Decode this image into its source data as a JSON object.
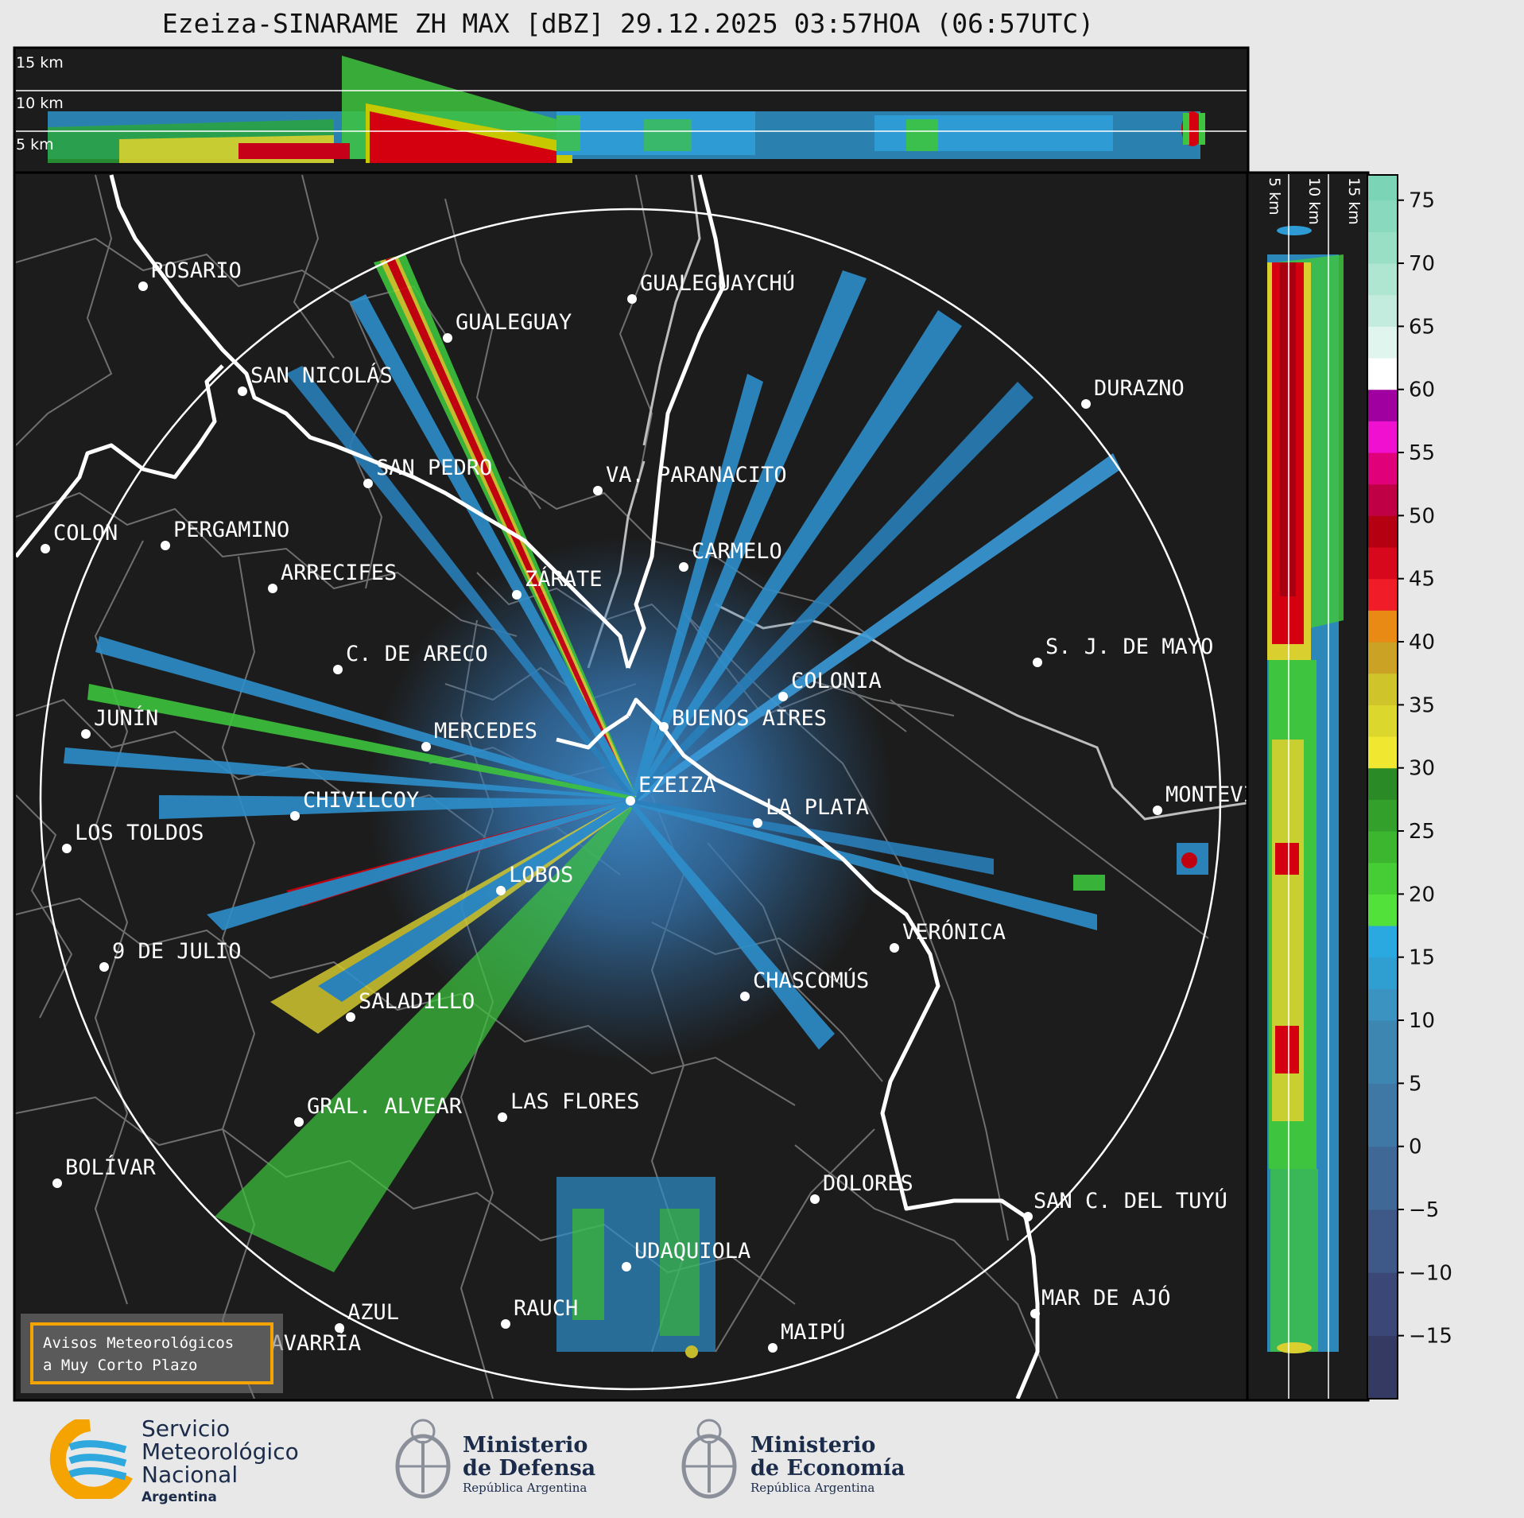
{
  "title": "Ezeiza-SINARAME ZH MAX [dBZ] 29.12.2025 03:57HOA (06:57UTC)",
  "top_panel": {
    "alt_labels": [
      "15 km",
      "10 km",
      "5 km"
    ]
  },
  "side_panel": {
    "alt_labels": [
      "5 km",
      "10 km",
      "15 km"
    ]
  },
  "colorbar": {
    "ticks": [
      "75",
      "70",
      "65",
      "60",
      "55",
      "50",
      "45",
      "40",
      "35",
      "30",
      "25",
      "20",
      "15",
      "10",
      "5",
      "0",
      "−5",
      "−10",
      "−15"
    ],
    "range": [
      -20,
      77
    ]
  },
  "cities": [
    {
      "name": "ROSARIO"
    },
    {
      "name": "GUALEGUAYCHÚ"
    },
    {
      "name": "GUALEGUAY"
    },
    {
      "name": "SAN NICOLÁS"
    },
    {
      "name": "DURAZNO"
    },
    {
      "name": "SAN PEDRO"
    },
    {
      "name": "VA. PARANACITO"
    },
    {
      "name": "COLON"
    },
    {
      "name": "PERGAMINO"
    },
    {
      "name": "CARMELO"
    },
    {
      "name": "ARRECIFES"
    },
    {
      "name": "ZÁRATE"
    },
    {
      "name": "S. J. DE MAYO"
    },
    {
      "name": "C. DE ARECO"
    },
    {
      "name": "COLONIA"
    },
    {
      "name": "JUNÍN"
    },
    {
      "name": "BUENOS AIRES"
    },
    {
      "name": "MERCEDES"
    },
    {
      "name": "EZEIZA"
    },
    {
      "name": "MONTEVIDEO"
    },
    {
      "name": "CHIVILCOY"
    },
    {
      "name": "LA PLATA"
    },
    {
      "name": "LOS TOLDOS"
    },
    {
      "name": "LOBOS"
    },
    {
      "name": "VERÓNICA"
    },
    {
      "name": "9 DE JULIO"
    },
    {
      "name": "CHASCOMÚS"
    },
    {
      "name": "SALADILLO"
    },
    {
      "name": "GRAL. ALVEAR"
    },
    {
      "name": "LAS FLORES"
    },
    {
      "name": "BOLÍVAR"
    },
    {
      "name": "DOLORES"
    },
    {
      "name": "SAN C. DEL TUYÚ"
    },
    {
      "name": "UDAQUIOLA"
    },
    {
      "name": "MAR DE AJÓ"
    },
    {
      "name": "AZUL"
    },
    {
      "name": "RAUCH"
    },
    {
      "name": "OLAVARRÍA"
    },
    {
      "name": "MAIPÚ"
    }
  ],
  "warning_box": {
    "line1": "Avisos Meteorológicos",
    "line2": "a Muy Corto Plazo"
  },
  "logos": {
    "smn": {
      "line1": "Servicio",
      "line2": "Meteorológico",
      "line3": "Nacional",
      "line4": "Argentina"
    },
    "defensa": {
      "line1": "Ministerio",
      "line2": "de Defensa",
      "line3": "República Argentina"
    },
    "economia": {
      "line1": "Ministerio",
      "line2": "de Economía",
      "line3": "República Argentina"
    }
  },
  "colors": {
    "background": "#e8e8e8",
    "panel": "#1c1c1c",
    "accent": "#f5a300",
    "brand": "#1b2b4a"
  }
}
